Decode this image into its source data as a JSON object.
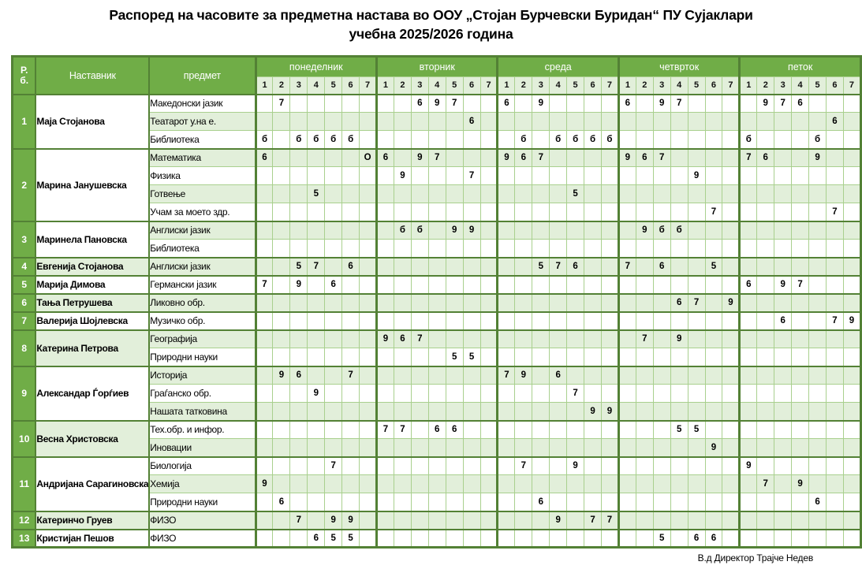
{
  "title": {
    "line1": "Распоред на часовите за предметна настава во ООУ „Стојан Бурчевски Буридан“ ПУ Сујаклари",
    "line2": "учебна 2025/2026 година"
  },
  "footer": {
    "signature": "В.д  Директор Трајче Недев"
  },
  "colors": {
    "header_green": "#70AD47",
    "light_green_row": "#E2EFDA",
    "grid_line": "#A9D08E",
    "dark_border": "#538135",
    "header_text": "#FFFFFF",
    "cell_text": "#000000"
  },
  "header": {
    "rb_line1": "Р.",
    "rb_line2": "б.",
    "teacher": "Наставник",
    "subject": "предмет",
    "days": [
      "понеделник",
      "вторник",
      "среда",
      "четврток",
      "петок"
    ],
    "periods": [
      "1",
      "2",
      "3",
      "4",
      "5",
      "6",
      "7"
    ]
  },
  "groups": [
    {
      "num": "1",
      "teacher": "Маја Стојанова",
      "teacher_bg": "white",
      "rows": [
        {
          "subject": "Македонски јазик",
          "bg": "white",
          "cells": [
            "",
            "7",
            "",
            "",
            "",
            "",
            "",
            "",
            "",
            "6",
            "9",
            "7",
            "",
            "",
            "6",
            "",
            "9",
            "",
            "",
            "",
            "",
            "6",
            "",
            "9",
            "7",
            "",
            "",
            "",
            "",
            "9",
            "7",
            "6",
            "",
            "",
            ""
          ]
        },
        {
          "subject": "Театарот у.на е.",
          "bg": "light",
          "cells": [
            "",
            "",
            "",
            "",
            "",
            "",
            "",
            "",
            "",
            "",
            "",
            "",
            "6",
            "",
            "",
            "",
            "",
            "",
            "",
            "",
            "",
            "",
            "",
            "",
            "",
            "",
            "",
            "",
            "",
            "",
            "",
            "",
            "",
            "6",
            ""
          ]
        },
        {
          "subject": "Библиотека",
          "bg": "white",
          "cells": [
            "б",
            "",
            "б",
            "б",
            "б",
            "б",
            "",
            "",
            "",
            "",
            "",
            "",
            "",
            "",
            "",
            "б",
            "",
            "б",
            "б",
            "б",
            "б",
            "",
            "",
            "",
            "",
            "",
            "",
            "",
            "б",
            "",
            "",
            "",
            "б",
            "",
            ""
          ]
        }
      ]
    },
    {
      "num": "2",
      "teacher": "Марина Јанушевска",
      "teacher_bg": "white",
      "rows": [
        {
          "subject": "Математика",
          "bg": "light",
          "cells": [
            "6",
            "",
            "",
            "",
            "",
            "",
            "О",
            "6",
            "",
            "9",
            "7",
            "",
            "",
            "",
            "9",
            "6",
            "7",
            "",
            "",
            "",
            "",
            "9",
            "6",
            "7",
            "",
            "",
            "",
            "",
            "7",
            "6",
            "",
            "",
            "9",
            "",
            ""
          ]
        },
        {
          "subject": "Физика",
          "bg": "white",
          "cells": [
            "",
            "",
            "",
            "",
            "",
            "",
            "",
            "",
            "9",
            "",
            "",
            "",
            "7",
            "",
            "",
            "",
            "",
            "",
            "",
            "",
            "",
            "",
            "",
            "",
            "",
            "9",
            "",
            "",
            "",
            "",
            "",
            "",
            "",
            "",
            ""
          ]
        },
        {
          "subject": "Готвење",
          "bg": "light",
          "cells": [
            "",
            "",
            "",
            "5",
            "",
            "",
            "",
            "",
            "",
            "",
            "",
            "",
            "",
            "",
            "",
            "",
            "",
            "",
            "5",
            "",
            "",
            "",
            "",
            "",
            "",
            "",
            "",
            "",
            "",
            "",
            "",
            "",
            "",
            "",
            ""
          ]
        },
        {
          "subject": "Учам за моето здр.",
          "bg": "white",
          "cells": [
            "",
            "",
            "",
            "",
            "",
            "",
            "",
            "",
            "",
            "",
            "",
            "",
            "",
            "",
            "",
            "",
            "",
            "",
            "",
            "",
            "",
            "",
            "",
            "",
            "",
            "",
            "7",
            "",
            "",
            "",
            "",
            "",
            "",
            "7",
            ""
          ]
        }
      ]
    },
    {
      "num": "3",
      "teacher": "Маринела Пановска",
      "teacher_bg": "white",
      "rows": [
        {
          "subject": "Англиски јазик",
          "bg": "light",
          "cells": [
            "",
            "",
            "",
            "",
            "",
            "",
            "",
            "",
            "б",
            "б",
            "",
            "9",
            "9",
            "",
            "",
            "",
            "",
            "",
            "",
            "",
            "",
            "",
            "9",
            "б",
            "б",
            "",
            "",
            "",
            "",
            "",
            "",
            "",
            "",
            "",
            ""
          ]
        },
        {
          "subject": "Библиотека",
          "bg": "white",
          "cells": [
            "",
            "",
            "",
            "",
            "",
            "",
            "",
            "",
            "",
            "",
            "",
            "",
            "",
            "",
            "",
            "",
            "",
            "",
            "",
            "",
            "",
            "",
            "",
            "",
            "",
            "",
            "",
            "",
            "",
            "",
            "",
            "",
            "",
            "",
            ""
          ]
        }
      ]
    },
    {
      "num": "4",
      "teacher": "Евгенија Стојанова",
      "teacher_bg": "light",
      "rows": [
        {
          "subject": "Англиски јазик",
          "bg": "light",
          "cells": [
            "",
            "",
            "5",
            "7",
            "",
            "6",
            "",
            "",
            "",
            "",
            "",
            "",
            "",
            "",
            "",
            "",
            "5",
            "7",
            "6",
            "",
            "",
            "7",
            "",
            "6",
            "",
            "",
            "5",
            "",
            "",
            "",
            "",
            "",
            "",
            "",
            ""
          ]
        }
      ]
    },
    {
      "num": "5",
      "teacher": "Марија Димова",
      "teacher_bg": "white",
      "rows": [
        {
          "subject": "Германски јазик",
          "bg": "white",
          "cells": [
            "7",
            "",
            "9",
            "",
            "6",
            "",
            "",
            "",
            "",
            "",
            "",
            "",
            "",
            "",
            "",
            "",
            "",
            "",
            "",
            "",
            "",
            "",
            "",
            "",
            "",
            "",
            "",
            "",
            "6",
            "",
            "9",
            "7",
            "",
            "",
            ""
          ]
        }
      ]
    },
    {
      "num": "6",
      "teacher": "Тања Петрушева",
      "teacher_bg": "light",
      "rows": [
        {
          "subject": "Ликовно обр.",
          "bg": "light",
          "cells": [
            "",
            "",
            "",
            "",
            "",
            "",
            "",
            "",
            "",
            "",
            "",
            "",
            "",
            "",
            "",
            "",
            "",
            "",
            "",
            "",
            "",
            "",
            "",
            "",
            "6",
            "7",
            "",
            "9",
            "",
            "",
            "",
            "",
            "",
            "",
            ""
          ]
        }
      ]
    },
    {
      "num": "7",
      "teacher": "Валерија Шојлевска",
      "teacher_bg": "white",
      "rows": [
        {
          "subject": "Музичко обр.",
          "bg": "white",
          "cells": [
            "",
            "",
            "",
            "",
            "",
            "",
            "",
            "",
            "",
            "",
            "",
            "",
            "",
            "",
            "",
            "",
            "",
            "",
            "",
            "",
            "",
            "",
            "",
            "",
            "",
            "",
            "",
            "",
            "",
            "",
            "6",
            "",
            "",
            "7",
            "9"
          ]
        }
      ]
    },
    {
      "num": "8",
      "teacher": "Катерина Петрова",
      "teacher_bg": "light",
      "rows": [
        {
          "subject": "Географија",
          "bg": "light",
          "cells": [
            "",
            "",
            "",
            "",
            "",
            "",
            "",
            "9",
            "6",
            "7",
            "",
            "",
            "",
            "",
            "",
            "",
            "",
            "",
            "",
            "",
            "",
            "",
            "7",
            "",
            "9",
            "",
            "",
            "",
            "",
            "",
            "",
            "",
            "",
            "",
            ""
          ]
        },
        {
          "subject": "Природни науки",
          "bg": "white",
          "cells": [
            "",
            "",
            "",
            "",
            "",
            "",
            "",
            "",
            "",
            "",
            "",
            "5",
            "5",
            "",
            "",
            "",
            "",
            "",
            "",
            "",
            "",
            "",
            "",
            "",
            "",
            "",
            "",
            "",
            "",
            "",
            "",
            "",
            "",
            "",
            ""
          ]
        }
      ]
    },
    {
      "num": "9",
      "teacher": "Александар Ѓорѓиев",
      "teacher_bg": "white",
      "rows": [
        {
          "subject": "Историја",
          "bg": "light",
          "cells": [
            "",
            "9",
            "6",
            "",
            "",
            "7",
            "",
            "",
            "",
            "",
            "",
            "",
            "",
            "",
            "7",
            "9",
            "",
            "6",
            "",
            "",
            "",
            "",
            "",
            "",
            "",
            "",
            "",
            "",
            "",
            "",
            "",
            "",
            "",
            "",
            ""
          ]
        },
        {
          "subject": "Граѓанско обр.",
          "bg": "white",
          "cells": [
            "",
            "",
            "",
            "9",
            "",
            "",
            "",
            "",
            "",
            "",
            "",
            "",
            "",
            "",
            "",
            "",
            "",
            "",
            "7",
            "",
            "",
            "",
            "",
            "",
            "",
            "",
            "",
            "",
            "",
            "",
            "",
            "",
            "",
            "",
            ""
          ]
        },
        {
          "subject": "Нашата татковина",
          "bg": "light",
          "cells": [
            "",
            "",
            "",
            "",
            "",
            "",
            "",
            "",
            "",
            "",
            "",
            "",
            "",
            "",
            "",
            "",
            "",
            "",
            "",
            "9",
            "9",
            "",
            "",
            "",
            "",
            "",
            "",
            "",
            "",
            "",
            "",
            "",
            "",
            "",
            ""
          ]
        }
      ]
    },
    {
      "num": "10",
      "teacher": "Весна Христовска",
      "teacher_bg": "light",
      "rows": [
        {
          "subject": "Тех.обр. и инфор.",
          "bg": "white",
          "cells": [
            "",
            "",
            "",
            "",
            "",
            "",
            "",
            "7",
            "7",
            "",
            "6",
            "6",
            "",
            "",
            "",
            "",
            "",
            "",
            "",
            "",
            "",
            "",
            "",
            "",
            "5",
            "5",
            "",
            "",
            "",
            "",
            "",
            "",
            "",
            "",
            ""
          ]
        },
        {
          "subject": "Иновации",
          "bg": "light",
          "cells": [
            "",
            "",
            "",
            "",
            "",
            "",
            "",
            "",
            "",
            "",
            "",
            "",
            "",
            "",
            "",
            "",
            "",
            "",
            "",
            "",
            "",
            "",
            "",
            "",
            "",
            "",
            "9",
            "",
            "",
            "",
            "",
            "",
            "",
            "",
            ""
          ]
        }
      ]
    },
    {
      "num": "11",
      "teacher": "Андријана Сарагиновска",
      "teacher_bg": "white",
      "rows": [
        {
          "subject": "Биологија",
          "bg": "white",
          "cells": [
            "",
            "",
            "",
            "",
            "7",
            "",
            "",
            "",
            "",
            "",
            "",
            "",
            "",
            "",
            "",
            "7",
            "",
            "",
            "9",
            "",
            "",
            "",
            "",
            "",
            "",
            "",
            "",
            "",
            "9",
            "",
            "",
            "",
            "",
            "",
            ""
          ]
        },
        {
          "subject": "Хемија",
          "bg": "light",
          "cells": [
            "9",
            "",
            "",
            "",
            "",
            "",
            "",
            "",
            "",
            "",
            "",
            "",
            "",
            "",
            "",
            "",
            "",
            "",
            "",
            "",
            "",
            "",
            "",
            "",
            "",
            "",
            "",
            "",
            "",
            "7",
            "",
            "9",
            "",
            "",
            ""
          ]
        },
        {
          "subject": "Природни науки",
          "bg": "white",
          "cells": [
            "",
            "6",
            "",
            "",
            "",
            "",
            "",
            "",
            "",
            "",
            "",
            "",
            "",
            "",
            "",
            "",
            "6",
            "",
            "",
            "",
            "",
            "",
            "",
            "",
            "",
            "",
            "",
            "",
            "",
            "",
            "",
            "",
            "6",
            "",
            ""
          ]
        }
      ]
    },
    {
      "num": "12",
      "teacher": "Катеринчо Груев",
      "teacher_bg": "light",
      "rows": [
        {
          "subject": "ФИЗО",
          "bg": "light",
          "cells": [
            "",
            "",
            "7",
            "",
            "9",
            "9",
            "",
            "",
            "",
            "",
            "",
            "",
            "",
            "",
            "",
            "",
            "",
            "9",
            "",
            "7",
            "7",
            "",
            "",
            "",
            "",
            "",
            "",
            "",
            "",
            "",
            "",
            "",
            "",
            "",
            ""
          ]
        }
      ]
    },
    {
      "num": "13",
      "teacher": "Кристијан Пешов",
      "teacher_bg": "white",
      "rows": [
        {
          "subject": "ФИЗО",
          "bg": "white",
          "cells": [
            "",
            "",
            "",
            "6",
            "5",
            "5",
            "",
            "",
            "",
            "",
            "",
            "",
            "",
            "",
            "",
            "",
            "",
            "",
            "",
            "",
            "",
            "",
            "",
            "5",
            "",
            "6",
            "6",
            "",
            "",
            "",
            "",
            "",
            "",
            "",
            ""
          ]
        }
      ]
    }
  ]
}
